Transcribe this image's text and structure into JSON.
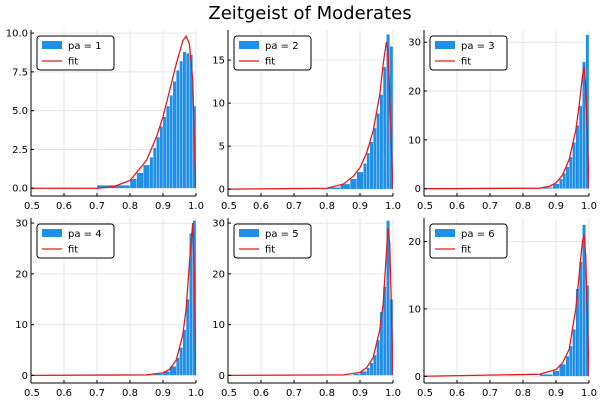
{
  "title": "Zeitgeist of Moderates",
  "colors": {
    "bar": "#1f8fe8",
    "fit": "#e31a1c",
    "grid": "#e6e6e6",
    "axis": "#000000"
  },
  "chart_data": [
    {
      "type": "bar",
      "legend": [
        "pa = 1",
        "fit"
      ],
      "legend_position": "top-left",
      "grid": true,
      "xlim": [
        0.5,
        1.0
      ],
      "xticks": [
        "0.5",
        "0.6",
        "0.7",
        "0.8",
        "0.9",
        "1.0"
      ],
      "ylim": [
        -0.5,
        10.2
      ],
      "yticks": [
        0,
        2.5,
        5,
        7.5,
        10
      ],
      "ytick_labels": [
        "0.0",
        "2.5",
        "5.0",
        "7.5",
        "10.0"
      ],
      "bins": [
        [
          0.7,
          0.8,
          0.2
        ],
        [
          0.8,
          0.82,
          0.6
        ],
        [
          0.82,
          0.84,
          1.0
        ],
        [
          0.84,
          0.86,
          1.5
        ],
        [
          0.86,
          0.87,
          2.0
        ],
        [
          0.87,
          0.88,
          2.6
        ],
        [
          0.88,
          0.89,
          3.3
        ],
        [
          0.89,
          0.9,
          4.0
        ],
        [
          0.9,
          0.91,
          4.6
        ],
        [
          0.91,
          0.92,
          5.3
        ],
        [
          0.92,
          0.93,
          6.0
        ],
        [
          0.93,
          0.94,
          6.9
        ],
        [
          0.94,
          0.95,
          7.6
        ],
        [
          0.95,
          0.96,
          8.2
        ],
        [
          0.96,
          0.97,
          8.8
        ],
        [
          0.97,
          0.98,
          8.7
        ],
        [
          0.98,
          0.99,
          8.6
        ],
        [
          0.99,
          1.0,
          5.3
        ]
      ],
      "fit": [
        [
          0.5,
          0.0
        ],
        [
          0.7,
          0.0
        ],
        [
          0.75,
          0.1
        ],
        [
          0.8,
          0.5
        ],
        [
          0.85,
          1.8
        ],
        [
          0.88,
          3.3
        ],
        [
          0.9,
          4.6
        ],
        [
          0.92,
          6.3
        ],
        [
          0.94,
          8.0
        ],
        [
          0.96,
          9.5
        ],
        [
          0.97,
          9.8
        ],
        [
          0.98,
          9.3
        ],
        [
          0.99,
          7.0
        ],
        [
          0.995,
          3.0
        ],
        [
          1.0,
          0.0
        ]
      ]
    },
    {
      "type": "bar",
      "legend": [
        "pa = 2",
        "fit"
      ],
      "legend_position": "top-left",
      "grid": true,
      "xlim": [
        0.5,
        1.0
      ],
      "xticks": [
        "0.5",
        "0.6",
        "0.7",
        "0.8",
        "0.9",
        "1.0"
      ],
      "ylim": [
        -0.8,
        18.5
      ],
      "yticks": [
        0,
        5,
        10,
        15
      ],
      "ytick_labels": [
        "0",
        "5",
        "10",
        "15"
      ],
      "bins": [
        [
          0.8,
          0.84,
          0.2
        ],
        [
          0.84,
          0.87,
          0.6
        ],
        [
          0.87,
          0.89,
          1.2
        ],
        [
          0.89,
          0.91,
          2.0
        ],
        [
          0.91,
          0.92,
          3.0
        ],
        [
          0.92,
          0.93,
          4.2
        ],
        [
          0.93,
          0.94,
          5.5
        ],
        [
          0.94,
          0.95,
          7.1
        ],
        [
          0.95,
          0.96,
          8.8
        ],
        [
          0.96,
          0.97,
          11.0
        ],
        [
          0.97,
          0.98,
          14.2
        ],
        [
          0.98,
          0.99,
          18.0
        ],
        [
          0.99,
          1.0,
          16.6
        ]
      ],
      "fit": [
        [
          0.5,
          0.0
        ],
        [
          0.8,
          0.1
        ],
        [
          0.85,
          0.6
        ],
        [
          0.88,
          1.5
        ],
        [
          0.9,
          2.5
        ],
        [
          0.92,
          4.2
        ],
        [
          0.94,
          6.8
        ],
        [
          0.96,
          11.0
        ],
        [
          0.97,
          14.5
        ],
        [
          0.98,
          17.1
        ],
        [
          0.985,
          16.0
        ],
        [
          0.99,
          11.0
        ],
        [
          0.995,
          5.0
        ],
        [
          1.0,
          0.0
        ]
      ]
    },
    {
      "type": "bar",
      "legend": [
        "pa = 3",
        "fit"
      ],
      "legend_position": "top-left",
      "grid": true,
      "xlim": [
        0.5,
        1.0
      ],
      "xticks": [
        "0.5",
        "0.6",
        "0.7",
        "0.8",
        "0.9",
        "1.0"
      ],
      "ylim": [
        -1.5,
        32.5
      ],
      "yticks": [
        0,
        10,
        20,
        30
      ],
      "ytick_labels": [
        "0",
        "10",
        "20",
        "30"
      ],
      "bins": [
        [
          0.86,
          0.89,
          0.3
        ],
        [
          0.89,
          0.91,
          1.0
        ],
        [
          0.91,
          0.92,
          2.0
        ],
        [
          0.92,
          0.93,
          3.2
        ],
        [
          0.93,
          0.94,
          4.5
        ],
        [
          0.94,
          0.95,
          6.5
        ],
        [
          0.95,
          0.96,
          9.5
        ],
        [
          0.96,
          0.97,
          13.0
        ],
        [
          0.97,
          0.98,
          17.0
        ],
        [
          0.98,
          0.99,
          26.0
        ],
        [
          0.99,
          1.0,
          31.5
        ]
      ],
      "fit": [
        [
          0.5,
          0.0
        ],
        [
          0.85,
          0.1
        ],
        [
          0.88,
          0.5
        ],
        [
          0.9,
          1.2
        ],
        [
          0.92,
          2.8
        ],
        [
          0.94,
          6.0
        ],
        [
          0.96,
          12.0
        ],
        [
          0.97,
          17.0
        ],
        [
          0.98,
          23.0
        ],
        [
          0.985,
          25.0
        ],
        [
          0.99,
          21.0
        ],
        [
          0.995,
          11.0
        ],
        [
          1.0,
          0.0
        ]
      ]
    },
    {
      "type": "bar",
      "legend": [
        "pa = 4",
        "fit"
      ],
      "legend_position": "top-left",
      "grid": true,
      "xlim": [
        0.5,
        1.0
      ],
      "xticks": [
        "0.5",
        "0.6",
        "0.7",
        "0.8",
        "0.9",
        "1.0"
      ],
      "ylim": [
        -1.5,
        31.0
      ],
      "yticks": [
        0,
        10,
        20,
        30
      ],
      "ytick_labels": [
        "0",
        "10",
        "20",
        "30"
      ],
      "bins": [
        [
          0.87,
          0.9,
          0.3
        ],
        [
          0.9,
          0.92,
          0.8
        ],
        [
          0.92,
          0.94,
          1.8
        ],
        [
          0.94,
          0.95,
          3.5
        ],
        [
          0.95,
          0.96,
          5.5
        ],
        [
          0.96,
          0.97,
          9.0
        ],
        [
          0.97,
          0.98,
          15.0
        ],
        [
          0.98,
          0.99,
          28.0
        ],
        [
          0.99,
          1.0,
          30.5
        ]
      ],
      "fit": [
        [
          0.5,
          0.0
        ],
        [
          0.85,
          0.1
        ],
        [
          0.9,
          0.5
        ],
        [
          0.92,
          1.2
        ],
        [
          0.94,
          3.0
        ],
        [
          0.96,
          8.0
        ],
        [
          0.97,
          13.0
        ],
        [
          0.98,
          22.0
        ],
        [
          0.99,
          30.0
        ],
        [
          0.995,
          20.0
        ],
        [
          1.0,
          0.0
        ]
      ]
    },
    {
      "type": "bar",
      "legend": [
        "pa = 5",
        "fit"
      ],
      "legend_position": "top-left",
      "grid": true,
      "xlim": [
        0.5,
        1.0
      ],
      "xticks": [
        "0.5",
        "0.6",
        "0.7",
        "0.8",
        "0.9",
        "1.0"
      ],
      "ylim": [
        -1.5,
        31.0
      ],
      "yticks": [
        0,
        10,
        20,
        30
      ],
      "ytick_labels": [
        "0",
        "10",
        "20",
        "30"
      ],
      "bins": [
        [
          0.88,
          0.9,
          0.3
        ],
        [
          0.9,
          0.92,
          0.8
        ],
        [
          0.92,
          0.93,
          1.5
        ],
        [
          0.93,
          0.94,
          2.5
        ],
        [
          0.94,
          0.95,
          4.0
        ],
        [
          0.95,
          0.96,
          7.0
        ],
        [
          0.96,
          0.97,
          12.5
        ],
        [
          0.97,
          0.98,
          17.5
        ],
        [
          0.98,
          0.99,
          30.5
        ],
        [
          0.99,
          1.0,
          15.0
        ]
      ],
      "fit": [
        [
          0.5,
          0.0
        ],
        [
          0.85,
          0.1
        ],
        [
          0.9,
          0.6
        ],
        [
          0.92,
          1.5
        ],
        [
          0.94,
          3.5
        ],
        [
          0.96,
          9.0
        ],
        [
          0.97,
          14.0
        ],
        [
          0.98,
          24.0
        ],
        [
          0.985,
          29.0
        ],
        [
          0.99,
          26.0
        ],
        [
          0.995,
          14.0
        ],
        [
          1.0,
          0.0
        ]
      ]
    },
    {
      "type": "bar",
      "legend": [
        "pa = 6",
        "fit"
      ],
      "legend_position": "top-left",
      "grid": true,
      "xlim": [
        0.5,
        1.0
      ],
      "xticks": [
        "0.5",
        "0.6",
        "0.7",
        "0.8",
        "0.9",
        "1.0"
      ],
      "ylim": [
        -1.0,
        23.5
      ],
      "yticks": [
        0,
        10,
        20
      ],
      "ytick_labels": [
        "0",
        "10",
        "20"
      ],
      "bins": [
        [
          0.85,
          0.89,
          0.3
        ],
        [
          0.89,
          0.91,
          0.8
        ],
        [
          0.91,
          0.93,
          1.8
        ],
        [
          0.93,
          0.94,
          3.0
        ],
        [
          0.94,
          0.95,
          4.5
        ],
        [
          0.95,
          0.96,
          7.0
        ],
        [
          0.96,
          0.97,
          13.0
        ],
        [
          0.97,
          0.98,
          17.0
        ],
        [
          0.98,
          0.99,
          22.5
        ],
        [
          0.99,
          1.0,
          13.5
        ]
      ],
      "fit": [
        [
          0.5,
          0.0
        ],
        [
          0.85,
          0.3
        ],
        [
          0.9,
          1.0
        ],
        [
          0.92,
          2.0
        ],
        [
          0.94,
          4.0
        ],
        [
          0.96,
          10.0
        ],
        [
          0.97,
          15.0
        ],
        [
          0.98,
          20.0
        ],
        [
          0.985,
          21.0
        ],
        [
          0.99,
          18.0
        ],
        [
          0.995,
          9.0
        ],
        [
          1.0,
          0.0
        ]
      ]
    }
  ]
}
